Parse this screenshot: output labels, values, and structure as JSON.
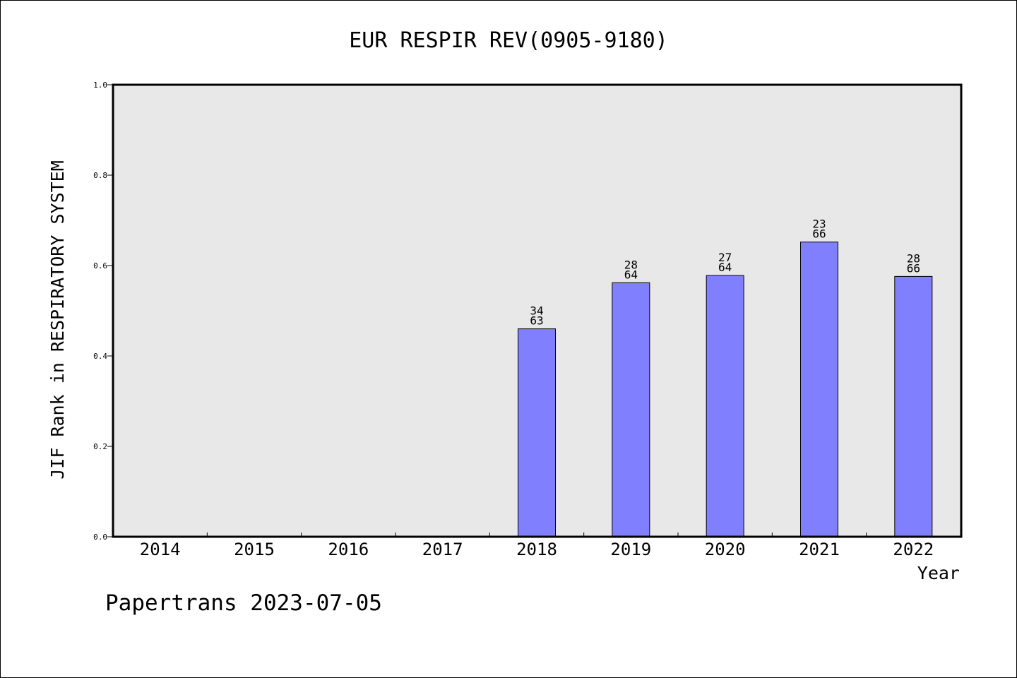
{
  "chart_data": {
    "type": "bar",
    "title": "EUR RESPIR REV(0905-9180)",
    "xlabel": "Year",
    "ylabel": "JIF Rank in RESPIRATORY SYSTEM",
    "ylim": [
      0,
      1.0
    ],
    "yticks": [
      "0.0",
      "0.2",
      "0.4",
      "0.6",
      "0.8",
      "1.0"
    ],
    "categories": [
      "2014",
      "2015",
      "2016",
      "2017",
      "2018",
      "2019",
      "2020",
      "2021",
      "2022"
    ],
    "values": [
      null,
      null,
      null,
      null,
      0.46,
      0.562,
      0.578,
      0.652,
      0.576
    ],
    "annotations": [
      null,
      null,
      null,
      null,
      {
        "rank": "34",
        "total": "63"
      },
      {
        "rank": "28",
        "total": "64"
      },
      {
        "rank": "27",
        "total": "64"
      },
      {
        "rank": "23",
        "total": "66"
      },
      {
        "rank": "28",
        "total": "66"
      }
    ],
    "grid": false,
    "colors": {
      "bar": "#8080ff",
      "plot_background": "#e8e8e8"
    }
  },
  "footer": {
    "text": "Papertrans 2023-07-05"
  }
}
